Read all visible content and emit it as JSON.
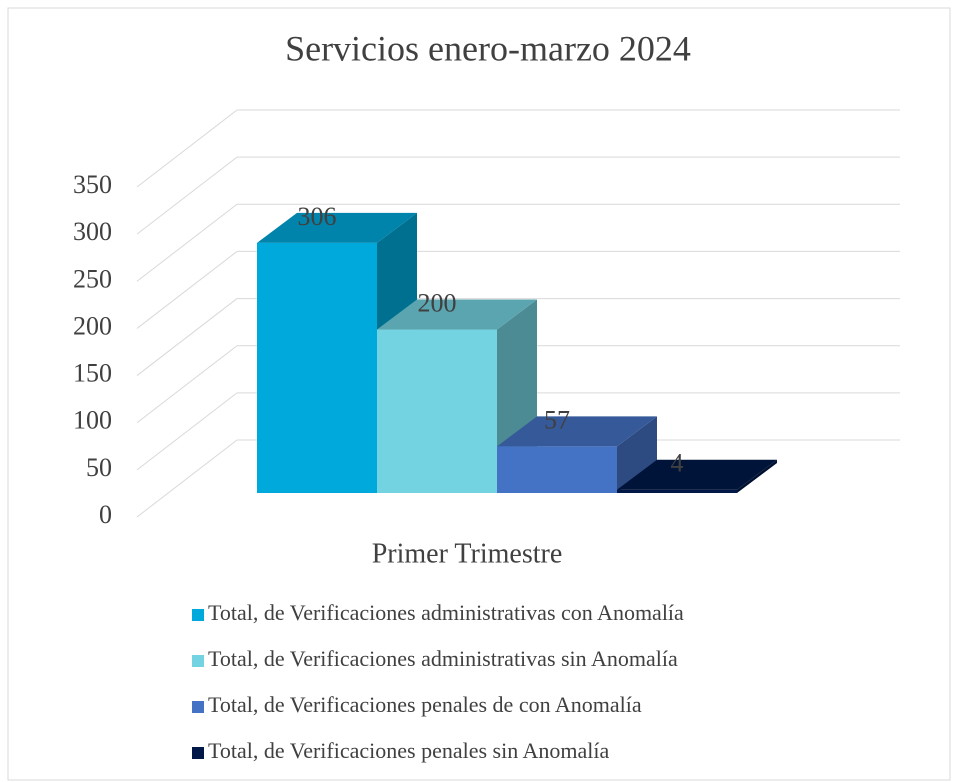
{
  "chart_data": {
    "type": "bar3d",
    "title": "Servicios enero-marzo 2024",
    "categories": [
      "Primer Trimestre"
    ],
    "series": [
      {
        "name": "Total, de Verificaciones administrativas con Anomalía",
        "color": "#00a9dc",
        "values": [
          306
        ]
      },
      {
        "name": "Total, de Verificaciones administrativas sin Anomalía",
        "color": "#74d3e0",
        "values": [
          200
        ]
      },
      {
        "name": "Total, de Verificaciones penales de con Anomalía",
        "color": "#4472c4",
        "values": [
          57
        ]
      },
      {
        "name": "Total, de Verificaciones penales  sin Anomalía",
        "color": "#001848",
        "values": [
          4
        ]
      }
    ],
    "ylim": [
      0,
      350
    ],
    "yticks": [
      0,
      50,
      100,
      150,
      200,
      250,
      300,
      350
    ],
    "grid": true,
    "legend": "bottom"
  }
}
